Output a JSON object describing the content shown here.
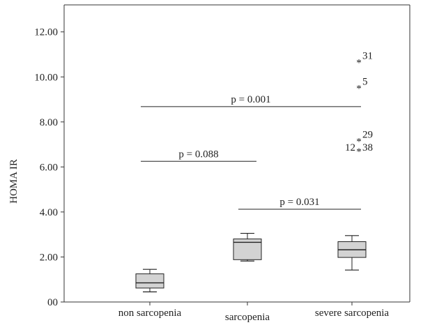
{
  "chart_data": {
    "type": "boxplot",
    "ylabel": "HOMA IR",
    "ylim": [
      0,
      13.2
    ],
    "yticks": [
      0,
      2,
      4,
      6,
      8,
      10,
      12
    ],
    "ytick_labels": [
      "00",
      "2.00",
      "4.00",
      "6.00",
      "8.00",
      "10.00",
      "12.00"
    ],
    "categories": [
      "non sarcopenia",
      "sarcopenia",
      "severe sarcopenia"
    ],
    "boxes": [
      {
        "category": "non sarcopenia",
        "whisker_low": 0.45,
        "q1": 0.62,
        "median": 0.85,
        "q3": 1.25,
        "whisker_high": 1.45
      },
      {
        "category": "sarcopenia",
        "whisker_low": 1.82,
        "q1": 1.88,
        "median": 2.65,
        "q3": 2.8,
        "whisker_high": 3.05
      },
      {
        "category": "severe sarcopenia",
        "whisker_low": 1.42,
        "q1": 1.98,
        "median": 2.32,
        "q3": 2.68,
        "whisker_high": 2.95
      }
    ],
    "outliers": [
      {
        "category": "severe sarcopenia",
        "y": 10.65,
        "label": "31"
      },
      {
        "category": "severe sarcopenia",
        "y": 9.5,
        "label": "5"
      },
      {
        "category": "severe sarcopenia",
        "y": 7.15,
        "label": "29"
      },
      {
        "category": "severe sarcopenia",
        "y": 6.7,
        "label": "38",
        "left_label": "12"
      }
    ],
    "comparisons": [
      {
        "from": "non sarcopenia",
        "to": "severe sarcopenia",
        "y": 8.68,
        "label": "p = 0.001"
      },
      {
        "from": "non sarcopenia",
        "to": "sarcopenia",
        "y": 6.25,
        "label": "p = 0.088"
      },
      {
        "from": "sarcopenia",
        "to": "severe sarcopenia",
        "y": 4.12,
        "label": "p = 0.031"
      }
    ],
    "colors": {
      "box_fill": "#d3d3d3",
      "line": "#222222",
      "axis": "#333333"
    }
  }
}
